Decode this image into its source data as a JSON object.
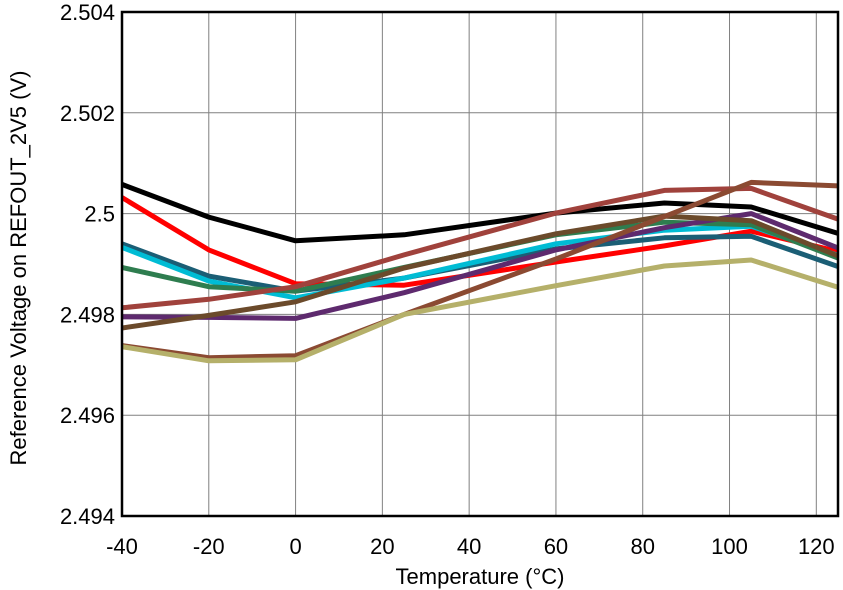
{
  "chart_data": {
    "type": "line",
    "title": "",
    "xlabel": "Temperature (°C)",
    "ylabel": "Reference Voltage on REFOUT_2V5 (V)",
    "xlim": [
      -40,
      125
    ],
    "ylim": [
      2.494,
      2.504
    ],
    "grid": true,
    "legend": "none",
    "x_ticks": [
      "-40",
      "-20",
      "0",
      "20",
      "40",
      "60",
      "80",
      "100",
      "120"
    ],
    "y_ticks": [
      "2.494",
      "2.496",
      "2.498",
      "2.5",
      "2.502",
      "2.504"
    ],
    "series": [
      {
        "color": "#000000",
        "x": [
          -40,
          -20,
          0,
          25,
          60,
          85,
          105,
          125
        ],
        "values": [
          2.50058,
          2.49993,
          2.49946,
          2.49958,
          2.50001,
          2.50021,
          2.50013,
          2.49961
        ]
      },
      {
        "color": "#ff0000",
        "x": [
          -40,
          -20,
          0,
          25,
          60,
          85,
          105,
          125
        ],
        "values": [
          2.50032,
          2.49928,
          2.49861,
          2.49858,
          2.49904,
          2.49936,
          2.49965,
          2.49925
        ]
      },
      {
        "color": "#1b5e75",
        "x": [
          -40,
          -20,
          0,
          25,
          60,
          85,
          105,
          125
        ],
        "values": [
          2.4994,
          2.49876,
          2.49846,
          2.49872,
          2.4993,
          2.49952,
          2.49955,
          2.49895
        ]
      },
      {
        "color": "#00bcd4",
        "x": [
          -40,
          -20,
          0,
          25,
          60,
          85,
          105,
          125
        ],
        "values": [
          2.49933,
          2.49866,
          2.49833,
          2.49872,
          2.4994,
          2.49967,
          2.49975,
          2.49917
        ]
      },
      {
        "color": "#2e7d4f",
        "x": [
          -40,
          -20,
          0,
          25,
          60,
          85,
          105,
          125
        ],
        "values": [
          2.49893,
          2.49855,
          2.49846,
          2.49893,
          2.49958,
          2.49983,
          2.49978,
          2.49912
        ]
      },
      {
        "color": "#a0423c",
        "x": [
          -40,
          -20,
          0,
          25,
          60,
          85,
          105,
          125
        ],
        "values": [
          2.49813,
          2.4983,
          2.49855,
          2.49918,
          2.50001,
          2.50046,
          2.5005,
          2.49989
        ]
      },
      {
        "color": "#5e2a6e",
        "x": [
          -40,
          -20,
          0,
          25,
          60,
          85,
          105,
          125
        ],
        "values": [
          2.49795,
          2.49794,
          2.49792,
          2.49843,
          2.49928,
          2.49972,
          2.5,
          2.49932
        ]
      },
      {
        "color": "#6b4a2b",
        "x": [
          -40,
          -20,
          0,
          25,
          60,
          85,
          105,
          125
        ],
        "values": [
          2.49773,
          2.49798,
          2.49825,
          2.49892,
          2.4996,
          2.49995,
          2.49986,
          2.49916
        ]
      },
      {
        "color": "#8b4a32",
        "x": [
          -40,
          -20,
          0,
          25,
          60,
          85,
          105,
          125
        ],
        "values": [
          2.49738,
          2.49714,
          2.49718,
          2.498,
          2.4991,
          2.49994,
          2.50062,
          2.50055
        ]
      },
      {
        "color": "#b5b06a",
        "x": [
          -40,
          -20,
          0,
          25,
          60,
          85,
          105,
          125
        ],
        "values": [
          2.49736,
          2.49708,
          2.4971,
          2.498,
          2.49857,
          2.49896,
          2.49908,
          2.49854
        ]
      }
    ]
  }
}
